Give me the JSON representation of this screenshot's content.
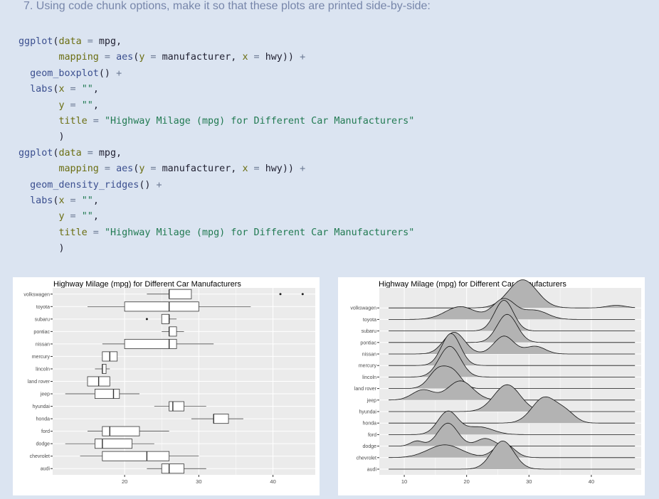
{
  "heading": "7. Using code chunk options, make it so that these plots are printed side-by-side:",
  "code": {
    "l1": {
      "fn": "ggplot",
      "p1": "(",
      "a1": "data",
      "eq1": " = ",
      "v1": "mpg,"
    },
    "l2": {
      "a1": "mapping",
      "eq1": " = ",
      "fn": "aes",
      "p1": "(",
      "a2": "y",
      "eq2": " = ",
      "v2": "manufacturer, ",
      "a3": "x",
      "eq3": " = ",
      "v3": "hwy)) ",
      "op": "+"
    },
    "l3": {
      "fn": "geom_boxplot",
      "p1": "() ",
      "op": "+"
    },
    "l4": {
      "fn": "labs",
      "p1": "(",
      "a1": "x",
      "eq1": " = ",
      "s1": "\"\"",
      "c1": ","
    },
    "l5": {
      "a1": "y",
      "eq1": " = ",
      "s1": "\"\"",
      "c1": ","
    },
    "l6": {
      "a1": "title",
      "eq1": " = ",
      "s1": "\"Highway Milage (mpg) for Different Car Manufacturers\""
    },
    "l7": {
      "p1": ")"
    },
    "l8": {
      "fn": "ggplot",
      "p1": "(",
      "a1": "data",
      "eq1": " = ",
      "v1": "mpg,"
    },
    "l9": {
      "a1": "mapping",
      "eq1": " = ",
      "fn": "aes",
      "p1": "(",
      "a2": "y",
      "eq2": " = ",
      "v2": "manufacturer, ",
      "a3": "x",
      "eq3": " = ",
      "v3": "hwy)) ",
      "op": "+"
    },
    "l10": {
      "fn": "geom_density_ridges",
      "p1": "() ",
      "op": "+"
    },
    "l11": {
      "fn": "labs",
      "p1": "(",
      "a1": "x",
      "eq1": " = ",
      "s1": "\"\"",
      "c1": ","
    },
    "l12": {
      "a1": "y",
      "eq1": " = ",
      "s1": "\"\"",
      "c1": ","
    },
    "l13": {
      "a1": "title",
      "eq1": " = ",
      "s1": "\"Highway Milage (mpg) for Different Car Manufacturers\""
    },
    "l14": {
      "p1": ")"
    }
  },
  "colors": {
    "page_bg": "#dbe4f1",
    "panel_bg": "#ebebeb",
    "grid": "#ffffff",
    "ridge_fill": "#b3b3b3"
  },
  "chart_data": [
    {
      "type": "box",
      "title": "Highway Milage (mpg) for Different Car Manufacturers",
      "xlabel": "",
      "ylabel": "",
      "x_ticks": [
        20,
        30,
        40
      ],
      "xlim": [
        10.3,
        45.7
      ],
      "grid": true,
      "categories": [
        "volkswagen",
        "toyota",
        "subaru",
        "pontiac",
        "nissan",
        "mercury",
        "lincoln",
        "land rover",
        "jeep",
        "hyundai",
        "honda",
        "ford",
        "dodge",
        "chevrolet",
        "audi"
      ],
      "boxes": [
        {
          "name": "volkswagen",
          "whisker_low": 23,
          "q1": 26,
          "median": 26,
          "q3": 29,
          "whisker_high": 29,
          "outliers": [
            41,
            44
          ]
        },
        {
          "name": "toyota",
          "whisker_low": 15,
          "q1": 20,
          "median": 26,
          "q3": 30,
          "whisker_high": 37,
          "outliers": []
        },
        {
          "name": "subaru",
          "whisker_low": 25,
          "q1": 25,
          "median": 26,
          "q3": 26,
          "whisker_high": 27,
          "outliers": [
            23
          ]
        },
        {
          "name": "pontiac",
          "whisker_low": 25,
          "q1": 26,
          "median": 26,
          "q3": 27,
          "whisker_high": 28,
          "outliers": []
        },
        {
          "name": "nissan",
          "whisker_low": 17,
          "q1": 20,
          "median": 26,
          "q3": 27,
          "whisker_high": 32,
          "outliers": []
        },
        {
          "name": "mercury",
          "whisker_low": 17,
          "q1": 17,
          "median": 18,
          "q3": 19,
          "whisker_high": 19,
          "outliers": []
        },
        {
          "name": "lincoln",
          "whisker_low": 16,
          "q1": 17,
          "median": 17,
          "q3": 17.5,
          "whisker_high": 18,
          "outliers": []
        },
        {
          "name": "land rover",
          "whisker_low": 15,
          "q1": 15,
          "median": 16.5,
          "q3": 18,
          "whisker_high": 18,
          "outliers": []
        },
        {
          "name": "jeep",
          "whisker_low": 12,
          "q1": 16,
          "median": 18.5,
          "q3": 19.3,
          "whisker_high": 22,
          "outliers": []
        },
        {
          "name": "hyundai",
          "whisker_low": 24,
          "q1": 26,
          "median": 26.5,
          "q3": 28,
          "whisker_high": 31,
          "outliers": []
        },
        {
          "name": "honda",
          "whisker_low": 29,
          "q1": 32,
          "median": 32,
          "q3": 34,
          "whisker_high": 36,
          "outliers": []
        },
        {
          "name": "ford",
          "whisker_low": 15,
          "q1": 17,
          "median": 18,
          "q3": 22,
          "whisker_high": 26,
          "outliers": []
        },
        {
          "name": "dodge",
          "whisker_low": 12,
          "q1": 16,
          "median": 17,
          "q3": 21,
          "whisker_high": 24,
          "outliers": []
        },
        {
          "name": "chevrolet",
          "whisker_low": 14,
          "q1": 17,
          "median": 23,
          "q3": 26,
          "whisker_high": 30,
          "outliers": []
        },
        {
          "name": "audi",
          "whisker_low": 23,
          "q1": 25,
          "median": 26,
          "q3": 28,
          "whisker_high": 31,
          "outliers": []
        }
      ]
    },
    {
      "type": "ridgeline",
      "title": "Highway Milage (mpg) for Different Car Manufacturers",
      "xlabel": "",
      "ylabel": "",
      "x_ticks": [
        10,
        20,
        30,
        40
      ],
      "xlim": [
        6.0,
        48.0
      ],
      "grid": true,
      "categories": [
        "volkswagen",
        "toyota",
        "subaru",
        "pontiac",
        "nissan",
        "mercury",
        "lincoln",
        "land rover",
        "jeep",
        "hyundai",
        "honda",
        "ford",
        "dodge",
        "chevrolet",
        "audi"
      ],
      "series": [
        {
          "name": "volkswagen",
          "peaks": [
            {
              "mu": 29,
              "sigma": 2.3,
              "h": 2.2
            },
            {
              "mu": 44,
              "sigma": 1.5,
              "h": 0.2
            }
          ]
        },
        {
          "name": "toyota",
          "peaks": [
            {
              "mu": 19,
              "sigma": 2.4,
              "h": 1.0
            },
            {
              "mu": 26,
              "sigma": 1.8,
              "h": 1.6
            },
            {
              "mu": 31,
              "sigma": 2.0,
              "h": 0.7
            }
          ]
        },
        {
          "name": "subaru",
          "peaks": [
            {
              "mu": 26,
              "sigma": 1.5,
              "h": 2.4
            }
          ]
        },
        {
          "name": "pontiac",
          "peaks": [
            {
              "mu": 26.5,
              "sigma": 1.6,
              "h": 2.2
            }
          ]
        },
        {
          "name": "nissan",
          "peaks": [
            {
              "mu": 18,
              "sigma": 1.7,
              "h": 1.7
            },
            {
              "mu": 26,
              "sigma": 1.6,
              "h": 1.4
            },
            {
              "mu": 31,
              "sigma": 1.6,
              "h": 0.6
            }
          ]
        },
        {
          "name": "mercury",
          "peaks": [
            {
              "mu": 17.5,
              "sigma": 1.5,
              "h": 2.5
            }
          ]
        },
        {
          "name": "lincoln",
          "peaks": [
            {
              "mu": 17.3,
              "sigma": 1.7,
              "h": 2.4
            }
          ]
        },
        {
          "name": "land rover",
          "peaks": [
            {
              "mu": 15.5,
              "sigma": 1.5,
              "h": 1.5
            },
            {
              "mu": 18,
              "sigma": 1.3,
              "h": 1.1
            }
          ]
        },
        {
          "name": "jeep",
          "peaks": [
            {
              "mu": 13,
              "sigma": 1.7,
              "h": 0.8
            },
            {
              "mu": 19,
              "sigma": 2.0,
              "h": 1.5
            }
          ]
        },
        {
          "name": "hyundai",
          "peaks": [
            {
              "mu": 26.5,
              "sigma": 2.1,
              "h": 2.1
            }
          ]
        },
        {
          "name": "honda",
          "peaks": [
            {
              "mu": 32.5,
              "sigma": 2.0,
              "h": 2.0
            },
            {
              "mu": 36,
              "sigma": 1.5,
              "h": 0.7
            }
          ]
        },
        {
          "name": "ford",
          "peaks": [
            {
              "mu": 17,
              "sigma": 1.6,
              "h": 1.8
            },
            {
              "mu": 22,
              "sigma": 2.2,
              "h": 0.6
            }
          ]
        },
        {
          "name": "dodge",
          "peaks": [
            {
              "mu": 12,
              "sigma": 1.0,
              "h": 0.4
            },
            {
              "mu": 17,
              "sigma": 1.6,
              "h": 1.8
            },
            {
              "mu": 23,
              "sigma": 1.4,
              "h": 0.6
            }
          ]
        },
        {
          "name": "chevrolet",
          "peaks": [
            {
              "mu": 16.5,
              "sigma": 2.7,
              "h": 1.0
            },
            {
              "mu": 26,
              "sigma": 1.6,
              "h": 1.1
            }
          ]
        },
        {
          "name": "audi",
          "peaks": [
            {
              "mu": 25.8,
              "sigma": 1.8,
              "h": 2.2
            }
          ]
        }
      ]
    }
  ]
}
